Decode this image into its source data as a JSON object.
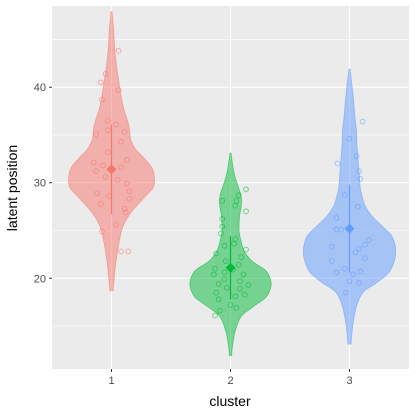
{
  "chart_data": {
    "type": "violin",
    "xlabel": "cluster",
    "ylabel": "latent position",
    "categories": [
      "1",
      "2",
      "3"
    ],
    "ylim": [
      10.5,
      48.5
    ],
    "y_ticks": [
      20,
      30,
      40
    ],
    "grid": true,
    "colors": {
      "panel": "#ebebeb",
      "grid": "#ffffff",
      "series": [
        "#f8766d",
        "#00ba38",
        "#619cff"
      ]
    },
    "groups": [
      {
        "category": "1",
        "range": [
          18.7,
          47.9
        ],
        "mean": 31.4,
        "sd": 4.7,
        "density": [
          [
            18.7,
            0.03
          ],
          [
            20,
            0.05
          ],
          [
            22,
            0.09
          ],
          [
            24,
            0.15
          ],
          [
            25.5,
            0.22
          ],
          [
            27,
            0.38
          ],
          [
            28.5,
            0.62
          ],
          [
            29.5,
            0.78
          ],
          [
            30.5,
            0.8
          ],
          [
            31.5,
            0.76
          ],
          [
            32.5,
            0.62
          ],
          [
            33.5,
            0.45
          ],
          [
            34.5,
            0.36
          ],
          [
            35.5,
            0.34
          ],
          [
            36.5,
            0.3
          ],
          [
            37.5,
            0.24
          ],
          [
            39,
            0.18
          ],
          [
            40.5,
            0.14
          ],
          [
            42,
            0.1
          ],
          [
            44,
            0.06
          ],
          [
            46,
            0.04
          ],
          [
            47.9,
            0.01
          ]
        ],
        "points": [
          [
            0.06,
            43.8
          ],
          [
            -0.05,
            41.4
          ],
          [
            -0.09,
            40.5
          ],
          [
            0.06,
            39.7
          ],
          [
            -0.08,
            38.7
          ],
          [
            -0.03,
            36.5
          ],
          [
            0.04,
            36.1
          ],
          [
            -0.03,
            35.5
          ],
          [
            0.11,
            35.3
          ],
          [
            -0.13,
            35.1
          ],
          [
            0.08,
            34.3
          ],
          [
            -0.03,
            33.2
          ],
          [
            0.13,
            32.4
          ],
          [
            -0.15,
            32.1
          ],
          [
            -0.07,
            31.8
          ],
          [
            0.08,
            31.6
          ],
          [
            -0.13,
            31.2
          ],
          [
            -0.05,
            30.6
          ],
          [
            0.05,
            30.3
          ],
          [
            0.13,
            29.9
          ],
          [
            0.15,
            29.1
          ],
          [
            -0.12,
            28.9
          ],
          [
            -0.02,
            28.6
          ],
          [
            0.15,
            28.3
          ],
          [
            -0.09,
            27.8
          ],
          [
            0.11,
            27.3
          ],
          [
            0.12,
            26.9
          ],
          [
            0.04,
            25.6
          ],
          [
            -0.08,
            24.9
          ],
          [
            0.08,
            22.8
          ],
          [
            0.14,
            22.8
          ]
        ]
      },
      {
        "category": "2",
        "range": [
          11.9,
          33.1
        ],
        "mean": 21.1,
        "sd": 3.3,
        "density": [
          [
            11.9,
            0.02
          ],
          [
            13,
            0.04
          ],
          [
            14.5,
            0.09
          ],
          [
            16,
            0.2
          ],
          [
            17,
            0.42
          ],
          [
            18,
            0.66
          ],
          [
            19,
            0.75
          ],
          [
            19.8,
            0.75
          ],
          [
            20.8,
            0.66
          ],
          [
            21.8,
            0.4
          ],
          [
            22.8,
            0.26
          ],
          [
            23.8,
            0.2
          ],
          [
            25,
            0.16
          ],
          [
            26.5,
            0.17
          ],
          [
            27.5,
            0.2
          ],
          [
            28.5,
            0.2
          ],
          [
            29.5,
            0.15
          ],
          [
            30.5,
            0.09
          ],
          [
            31.5,
            0.05
          ],
          [
            33.1,
            0.01
          ]
        ],
        "points": [
          [
            0.13,
            29.3
          ],
          [
            0.07,
            28.7
          ],
          [
            0.05,
            28.1
          ],
          [
            -0.07,
            28.1
          ],
          [
            0.04,
            27.6
          ],
          [
            0.13,
            27.0
          ],
          [
            -0.07,
            26.2
          ],
          [
            -0.07,
            25.4
          ],
          [
            -0.08,
            24.7
          ],
          [
            0.04,
            24.1
          ],
          [
            0.03,
            23.6
          ],
          [
            -0.05,
            23.4
          ],
          [
            0.13,
            23.0
          ],
          [
            -0.12,
            22.6
          ],
          [
            0.09,
            22.2
          ],
          [
            -0.04,
            21.8
          ],
          [
            0.07,
            21.4
          ],
          [
            -0.13,
            21.0
          ],
          [
            0.02,
            20.9
          ],
          [
            -0.14,
            20.4
          ],
          [
            -0.05,
            20.6
          ],
          [
            0.11,
            20.4
          ],
          [
            -0.05,
            19.9
          ],
          [
            0.08,
            19.7
          ],
          [
            -0.1,
            19.4
          ],
          [
            0.15,
            19.3
          ],
          [
            -0.03,
            19.0
          ],
          [
            0.08,
            18.9
          ],
          [
            -0.12,
            18.5
          ],
          [
            0.04,
            18.1
          ],
          [
            0.12,
            18.3
          ],
          [
            -0.1,
            17.8
          ],
          [
            0.0,
            17.2
          ],
          [
            -0.09,
            16.6
          ],
          [
            -0.13,
            16.1
          ],
          [
            0.05,
            16.9
          ]
        ]
      },
      {
        "category": "3",
        "range": [
          13.1,
          41.9
        ],
        "mean": 25.2,
        "sd": 4.6,
        "density": [
          [
            13.1,
            0.03
          ],
          [
            15,
            0.06
          ],
          [
            17,
            0.13
          ],
          [
            18.5,
            0.25
          ],
          [
            19.5,
            0.5
          ],
          [
            20.5,
            0.72
          ],
          [
            21.5,
            0.82
          ],
          [
            22.5,
            0.86
          ],
          [
            23.5,
            0.85
          ],
          [
            24.5,
            0.78
          ],
          [
            25.5,
            0.6
          ],
          [
            26.5,
            0.42
          ],
          [
            27.5,
            0.3
          ],
          [
            28.5,
            0.24
          ],
          [
            29.5,
            0.2
          ],
          [
            31,
            0.18
          ],
          [
            32.5,
            0.16
          ],
          [
            34,
            0.14
          ],
          [
            35.5,
            0.13
          ],
          [
            37,
            0.1
          ],
          [
            39,
            0.07
          ],
          [
            41.9,
            0.01
          ]
        ],
        "points": [
          [
            0.11,
            36.4
          ],
          [
            0.0,
            34.6
          ],
          [
            0.06,
            32.8
          ],
          [
            -0.1,
            32.0
          ],
          [
            0.08,
            31.2
          ],
          [
            0.09,
            30.4
          ],
          [
            -0.04,
            28.7
          ],
          [
            0.07,
            27.5
          ],
          [
            -0.11,
            26.3
          ],
          [
            -0.11,
            25.1
          ],
          [
            -0.07,
            25.1
          ],
          [
            0.16,
            24.0
          ],
          [
            0.13,
            23.5
          ],
          [
            -0.15,
            23.3
          ],
          [
            0.08,
            23.1
          ],
          [
            0.05,
            22.7
          ],
          [
            0.13,
            22.1
          ],
          [
            -0.15,
            21.8
          ],
          [
            -0.04,
            21.0
          ],
          [
            0.09,
            20.7
          ],
          [
            -0.11,
            20.6
          ],
          [
            0.03,
            20.4
          ],
          [
            0.0,
            19.7
          ],
          [
            0.08,
            19.5
          ],
          [
            -0.03,
            18.5
          ]
        ]
      }
    ]
  }
}
